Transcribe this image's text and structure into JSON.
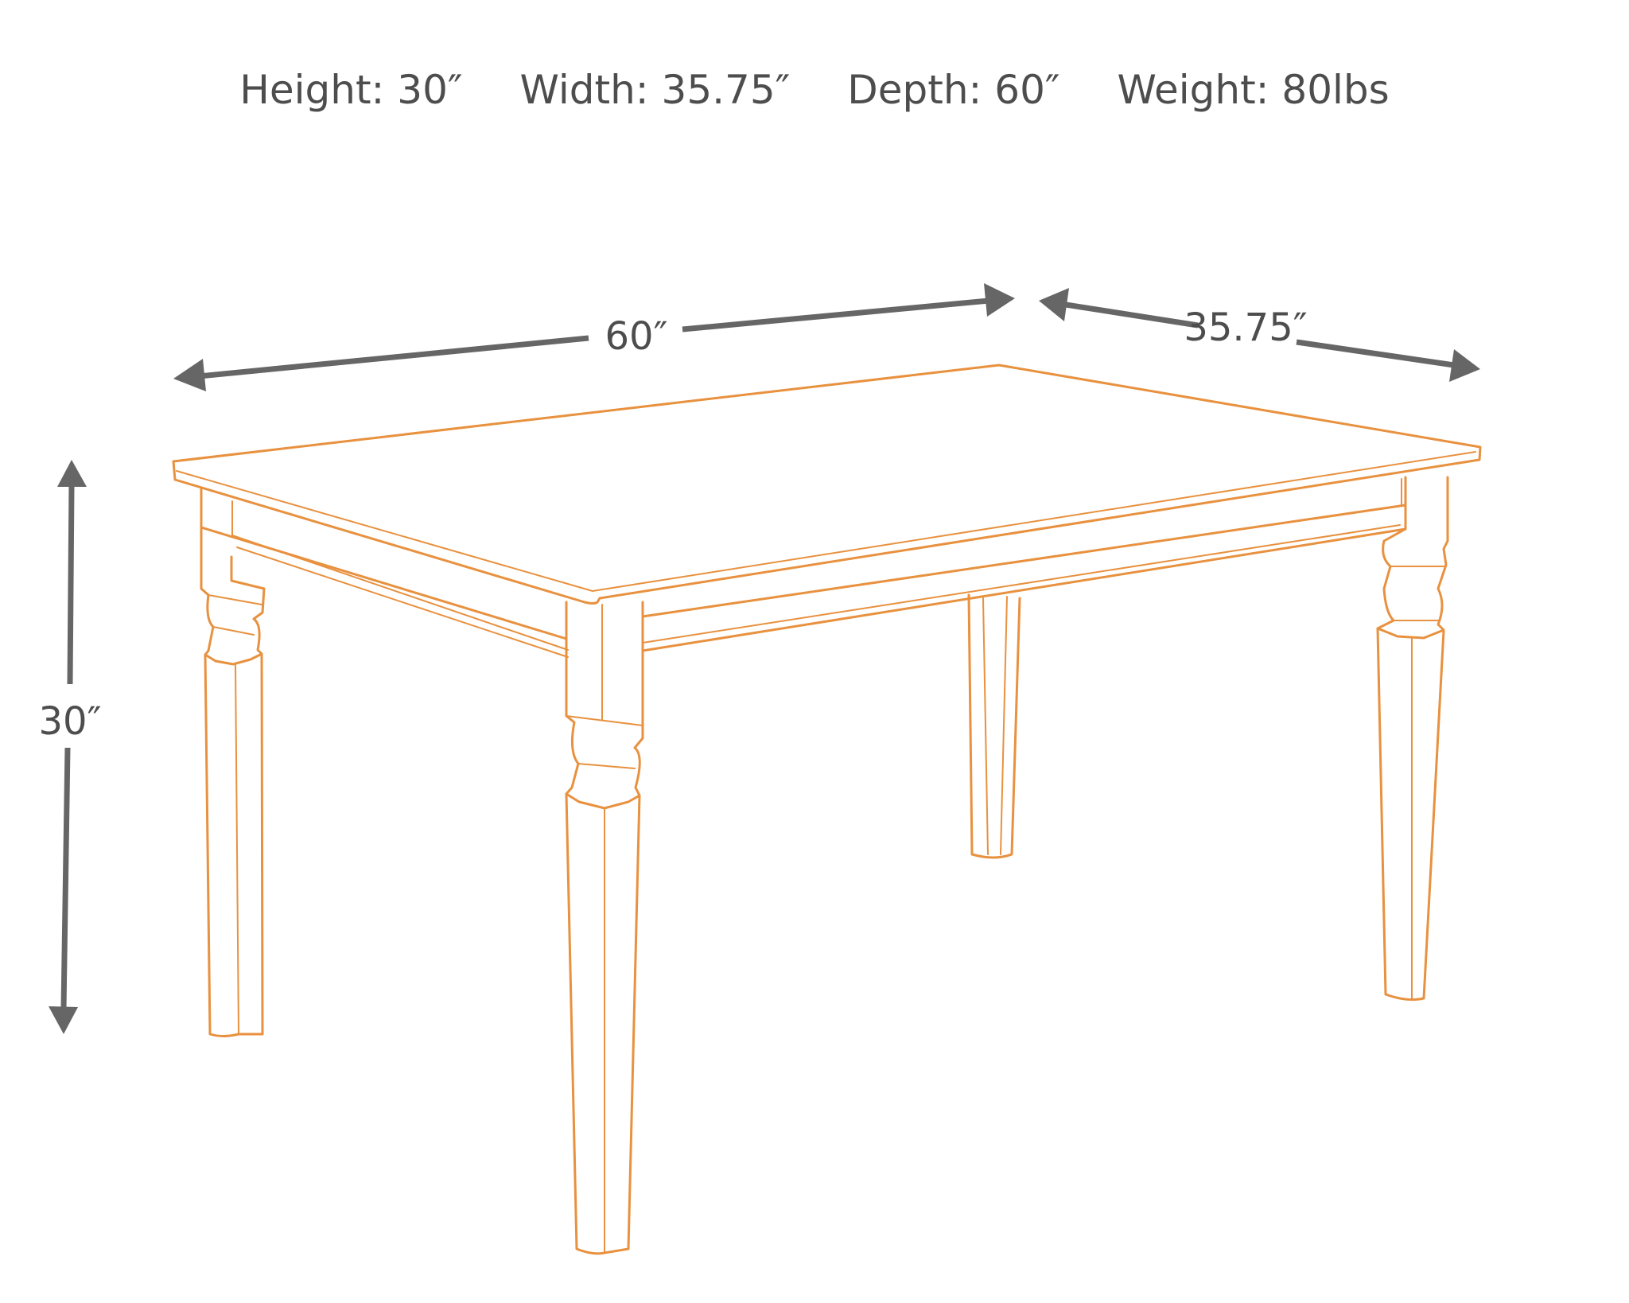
{
  "specs": {
    "height": "Height: 30″",
    "width": "Width: 35.75″",
    "depth": "Depth: 60″",
    "weight": "Weight: 80lbs"
  },
  "dimensions": {
    "length_label": "60″",
    "width_label": "35.75″",
    "height_label": "30″"
  },
  "colors": {
    "outline": "#e8913f",
    "arrow": "#666666",
    "text": "#4d4d4d"
  }
}
